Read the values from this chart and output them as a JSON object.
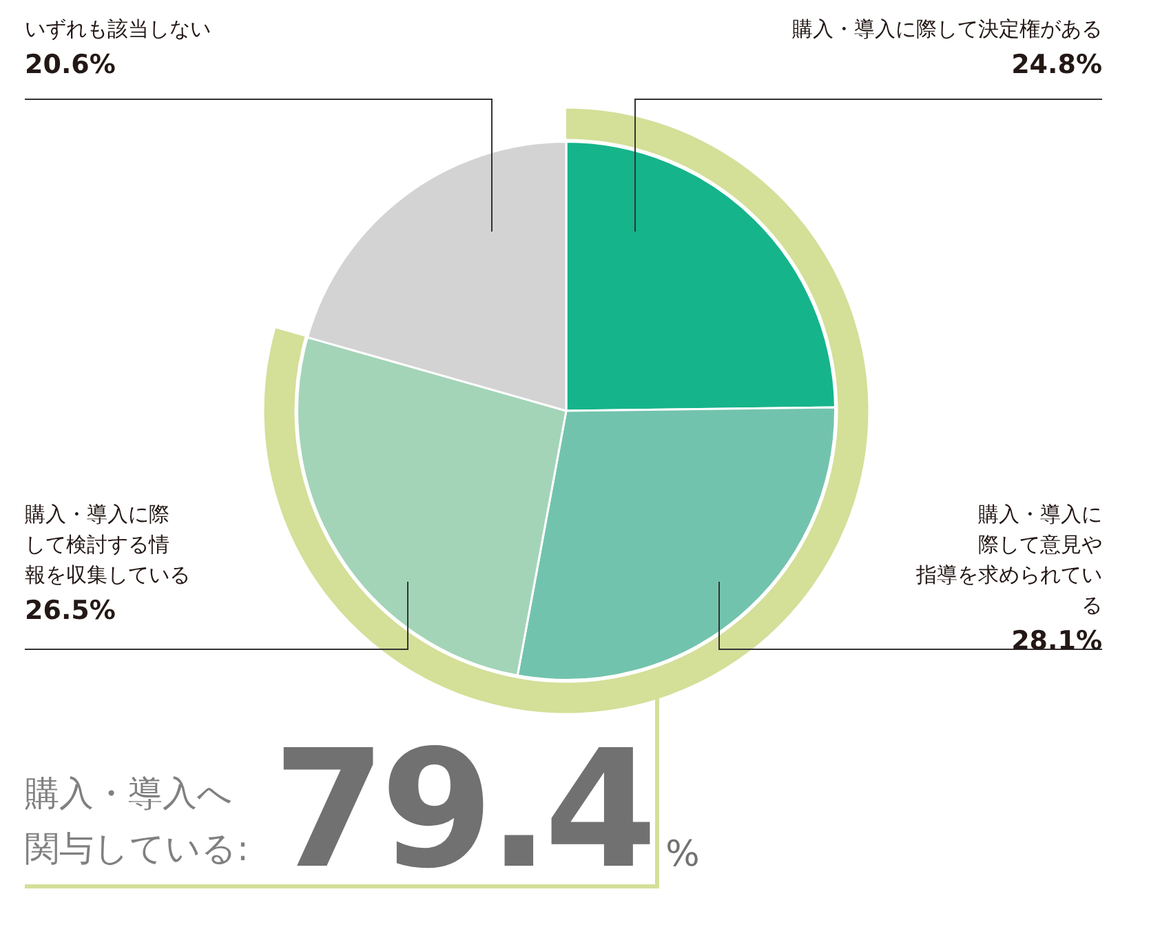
{
  "chart_data": {
    "type": "pie",
    "categories": [
      "購入・導入に際して決定権がある",
      "購入・導入に際して意見や指導を求められている",
      "購入・導入に際して検討する情報を収集している",
      "いずれも該当しない"
    ],
    "values": [
      24.8,
      28.1,
      26.5,
      20.6
    ],
    "value_labels": [
      "24.8%",
      "28.1%",
      "26.5%",
      "20.6%"
    ],
    "colors": [
      "#16b48b",
      "#72c3ad",
      "#a3d4b8",
      "#d3d3d3"
    ],
    "annotations": [
      "購入・導入へ関与している:",
      "79.4%"
    ],
    "legend": false
  }
}
